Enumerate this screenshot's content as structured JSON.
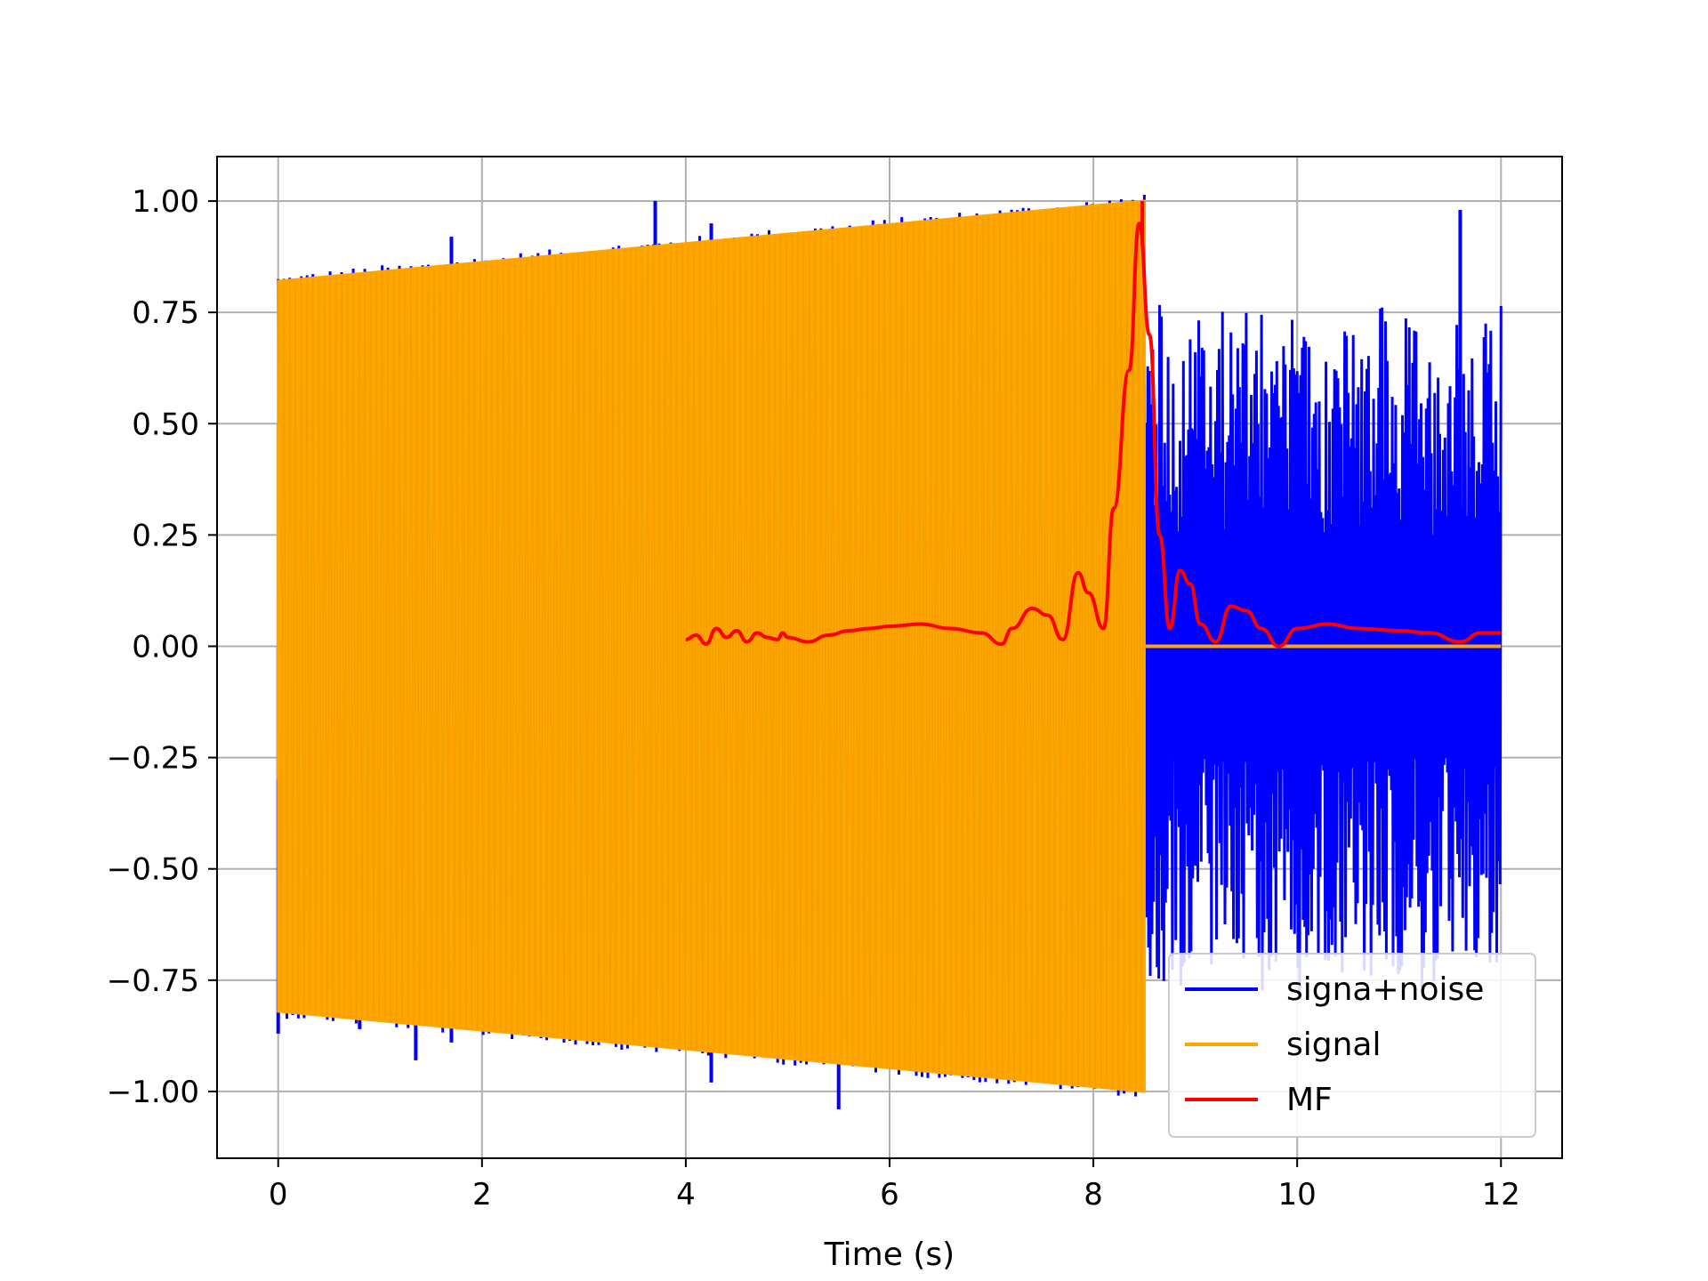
{
  "chart_data": {
    "type": "line",
    "title": "",
    "xlabel": "Time (s)",
    "ylabel": "",
    "xlim": [
      -0.6,
      12.6
    ],
    "ylim": [
      -1.15,
      1.1
    ],
    "grid": true,
    "legend_position": "lower-right",
    "x_ticks": [
      0,
      2,
      4,
      6,
      8,
      10,
      12
    ],
    "x_tick_labels": [
      "0",
      "2",
      "4",
      "6",
      "8",
      "10",
      "12"
    ],
    "y_ticks": [
      1.0,
      0.75,
      0.5,
      0.25,
      0.0,
      -0.25,
      -0.5,
      -0.75,
      -1.0
    ],
    "y_tick_labels": [
      "1.00",
      "0.75",
      "0.50",
      "0.25",
      "0.00",
      "−0.25",
      "−0.50",
      "−0.75",
      "−1.00"
    ],
    "series": [
      {
        "name": "signa+noise",
        "color": "#0000ff",
        "description_points": {
          "chirp_start": 0.0,
          "chirp_end": 8.5,
          "envelope_start": 0.82,
          "envelope_end": 1.0,
          "noise_region": [
            8.5,
            12.0
          ],
          "noise_min_approx": -0.8,
          "noise_max_approx": 0.98,
          "spikes": [
            {
              "x": 0.0,
              "y": -0.87
            },
            {
              "x": 0.8,
              "y": -0.86
            },
            {
              "x": 1.35,
              "y": -0.93
            },
            {
              "x": 1.7,
              "y": 0.92
            },
            {
              "x": 1.7,
              "y": -0.89
            },
            {
              "x": 3.7,
              "y": 1.0
            },
            {
              "x": 4.25,
              "y": 0.95
            },
            {
              "x": 4.25,
              "y": -0.98
            },
            {
              "x": 5.5,
              "y": -1.04
            },
            {
              "x": 11.6,
              "y": 0.98
            }
          ]
        }
      },
      {
        "name": "signal",
        "color": "#ffa500",
        "description_points": {
          "chirp_start": 0.0,
          "chirp_end": 8.5,
          "envelope_start": 0.82,
          "envelope_end": 1.0,
          "zero_after": [
            8.5,
            12.0
          ]
        }
      },
      {
        "name": "MF",
        "color": "#ff0000",
        "x": [
          4.0,
          4.1,
          4.2,
          4.3,
          4.4,
          4.5,
          4.6,
          4.7,
          4.8,
          4.9,
          4.95,
          5.0,
          5.2,
          5.4,
          5.6,
          5.8,
          6.0,
          6.3,
          6.6,
          6.9,
          7.1,
          7.2,
          7.4,
          7.55,
          7.7,
          7.85,
          7.95,
          8.1,
          8.2,
          8.35,
          8.45,
          8.55,
          8.65,
          8.75,
          8.85,
          8.95,
          9.05,
          9.2,
          9.35,
          9.5,
          9.65,
          9.82,
          10.0,
          10.3,
          10.6,
          11.0,
          11.3,
          11.6,
          11.8,
          12.0
        ],
        "values": [
          0.015,
          0.025,
          0.005,
          0.04,
          0.02,
          0.035,
          0.01,
          0.03,
          0.02,
          0.015,
          0.03,
          0.02,
          0.01,
          0.025,
          0.035,
          0.04,
          0.045,
          0.05,
          0.04,
          0.03,
          0.005,
          0.04,
          0.085,
          0.07,
          0.015,
          0.165,
          0.12,
          0.04,
          0.31,
          0.62,
          0.95,
          0.7,
          0.25,
          0.04,
          0.17,
          0.14,
          0.05,
          0.01,
          0.09,
          0.08,
          0.04,
          0.0,
          0.04,
          0.05,
          0.04,
          0.035,
          0.03,
          0.01,
          0.03,
          0.03
        ]
      }
    ]
  }
}
